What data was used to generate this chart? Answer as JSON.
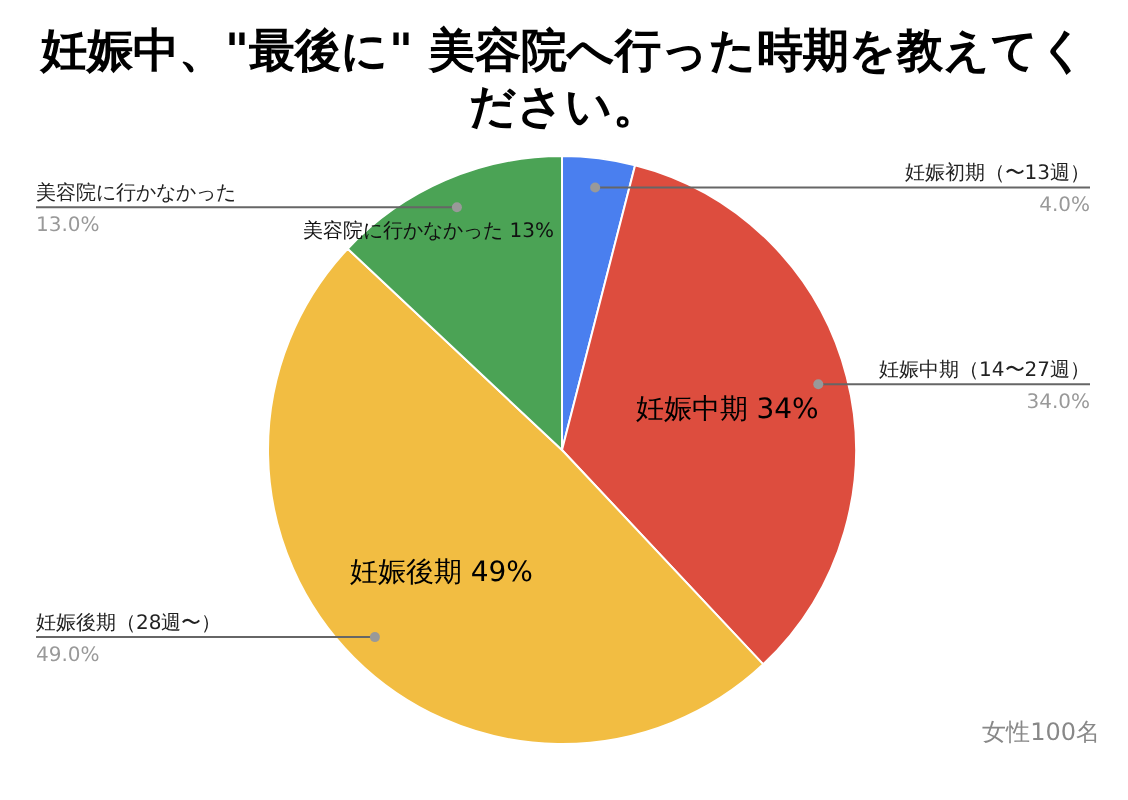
{
  "chart_data": {
    "type": "pie",
    "title": "妊娠中、\"最後に\" 美容院へ行った時期を教えてください。",
    "categories": [
      "妊娠初期（〜13週）",
      "妊娠中期（14〜27週）",
      "妊娠後期（28週〜）",
      "美容院に行かなかった"
    ],
    "values": [
      4.0,
      34.0,
      49.0,
      13.0
    ],
    "colors": [
      "#4a7fef",
      "#dd4d3e",
      "#f2bd42",
      "#4ba355"
    ],
    "value_labels": [
      "4.0%",
      "34.0%",
      "49.0%",
      "13.0%"
    ],
    "annotations": [
      {
        "text": "妊娠中期 34%",
        "x": "妊娠中期（14〜27週）"
      },
      {
        "text": "妊娠後期 49%",
        "x": "妊娠後期（28週〜）"
      },
      {
        "text": "美容院に行かなかった 13%",
        "x": "美容院に行かなかった"
      },
      "女性100名"
    ]
  }
}
